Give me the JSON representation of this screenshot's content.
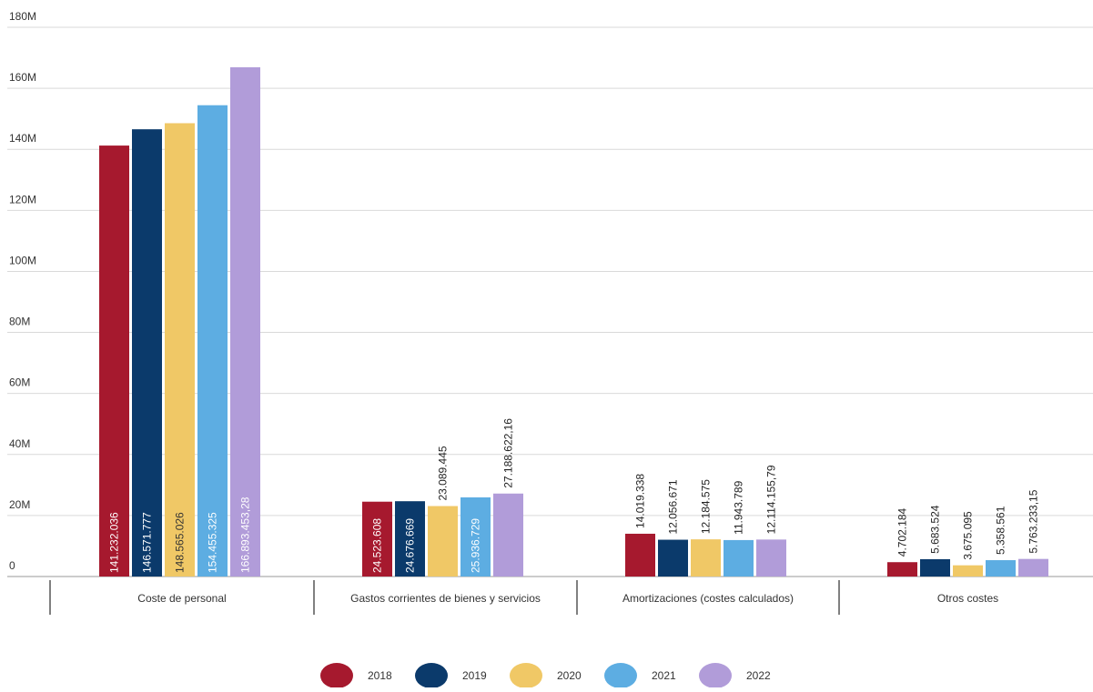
{
  "chart_data": {
    "type": "bar",
    "categories": [
      "Coste de personal",
      "Gastos corrientes de bienes y servicios",
      "Amortizaciones (costes calculados)",
      "Otros costes"
    ],
    "series": [
      {
        "name": "2018",
        "color": "#a6192e",
        "values": [
          141232036,
          24523608,
          14019338,
          4702184
        ],
        "labels": [
          "141.232.036",
          "24.523.608",
          "14.019.338",
          "4.702.184"
        ]
      },
      {
        "name": "2019",
        "color": "#0b3a6b",
        "values": [
          146571777,
          24676669,
          12056671,
          5683524
        ],
        "labels": [
          "146.571.777",
          "24.676.669",
          "12.056.671",
          "5.683.524"
        ]
      },
      {
        "name": "2020",
        "color": "#f0c866",
        "values": [
          148565026,
          23089445,
          12184575,
          3675095
        ],
        "labels": [
          "148.565.026",
          "23.089.445",
          "12.184.575",
          "3.675.095"
        ]
      },
      {
        "name": "2021",
        "color": "#5dade2",
        "values": [
          154455325,
          25936729,
          11943789,
          5358561
        ],
        "labels": [
          "154.455.325",
          "25.936.729",
          "11.943.789",
          "5.358.561"
        ]
      },
      {
        "name": "2022",
        "color": "#b19cd9",
        "values": [
          166893453.28,
          27188622.16,
          12114155.79,
          5763233.15
        ],
        "labels": [
          "166.893.453,28",
          "27.188.622,16",
          "12.114.155,79",
          "5.763.233,15"
        ]
      }
    ],
    "yticks": [
      0,
      20000000,
      40000000,
      60000000,
      80000000,
      100000000,
      120000000,
      140000000,
      160000000,
      180000000
    ],
    "ytick_labels": [
      "0",
      "20M",
      "40M",
      "60M",
      "80M",
      "100M",
      "120M",
      "140M",
      "160M",
      "180M"
    ],
    "ylim": [
      0,
      180000000
    ],
    "grid": true,
    "legend_position": "bottom-center"
  }
}
